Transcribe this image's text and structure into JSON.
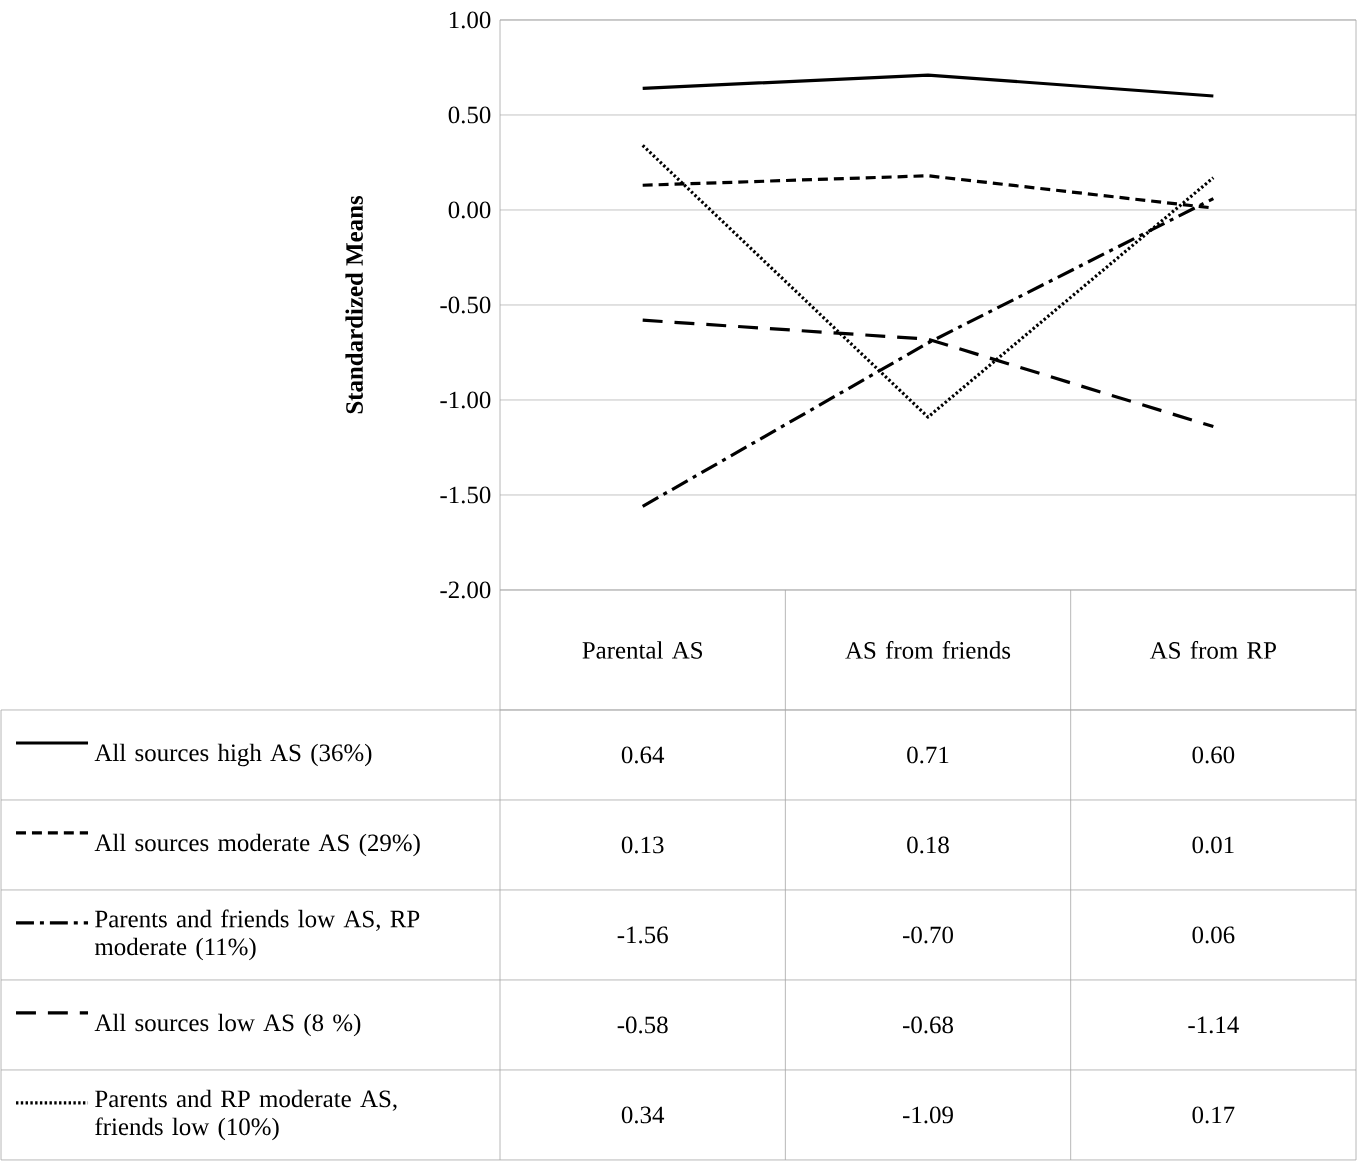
{
  "chart_data": {
    "type": "line",
    "ylabel": "Standardized Means",
    "categories": [
      "Parental AS",
      "AS from friends",
      "AS from RP"
    ],
    "ylim": [
      -2,
      1
    ],
    "yticks": [
      {
        "value": -2,
        "label": "-2.00"
      },
      {
        "value": -1.5,
        "label": "-1.50"
      },
      {
        "value": -1,
        "label": "-1.00"
      },
      {
        "value": -0.5,
        "label": "-0.50"
      },
      {
        "value": 0,
        "label": "0.00"
      },
      {
        "value": 0.5,
        "label": "0.50"
      },
      {
        "value": 1,
        "label": "1.00"
      }
    ],
    "grid": "y",
    "legend": "bottom",
    "marker": "none",
    "series": [
      {
        "name": "All sources high AS (36%)",
        "color": "#000000",
        "line_style": "solid",
        "values": [
          0.64,
          0.71,
          0.6
        ],
        "value_labels": [
          "0.64",
          "0.71",
          "0.60"
        ]
      },
      {
        "name": "All sources moderate AS (29%)",
        "color": "#000000",
        "line_style": "dashed",
        "values": [
          0.13,
          0.18,
          0.01
        ],
        "value_labels": [
          "0.13",
          "0.18",
          "0.01"
        ]
      },
      {
        "name": "Parents and friends low AS, RP moderate (11%)",
        "color": "#000000",
        "line_style": "dashdot",
        "values": [
          -1.56,
          -0.7,
          0.06
        ],
        "value_labels": [
          "-1.56",
          "-0.70",
          "0.06"
        ]
      },
      {
        "name": "All sources low AS (8 %)",
        "color": "#000000",
        "line_style": "longdash",
        "values": [
          -0.58,
          -0.68,
          -1.14
        ],
        "value_labels": [
          "-0.58",
          "-0.68",
          "-1.14"
        ]
      },
      {
        "name": "Parents and RP moderate AS, friends low (10%)",
        "color": "#000000",
        "line_style": "dotted",
        "values": [
          0.34,
          -1.09,
          0.17
        ],
        "value_labels": [
          "0.34",
          "-1.09",
          "0.17"
        ]
      }
    ]
  }
}
